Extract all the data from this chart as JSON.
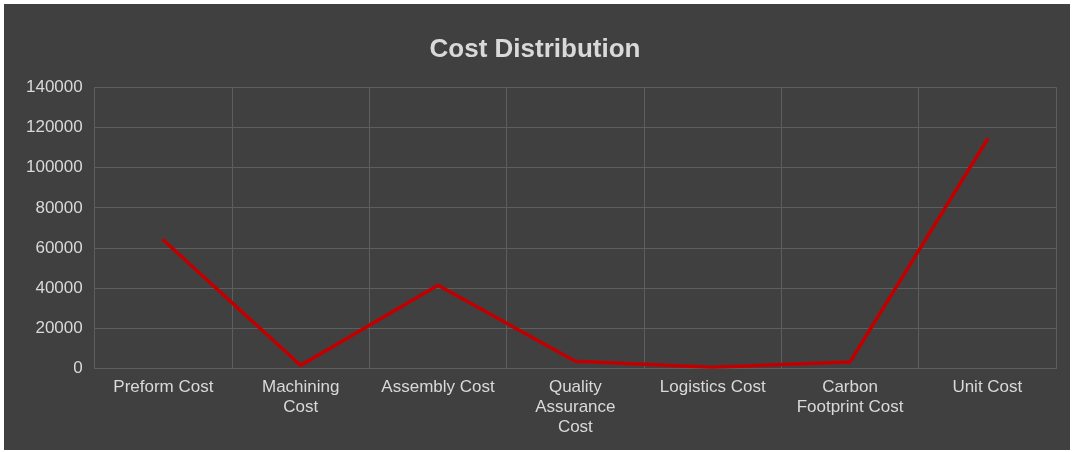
{
  "chart_data": {
    "type": "line",
    "title": "Cost Distribution",
    "categories": [
      "Preform Cost",
      "Machining Cost",
      "Assembly Cost",
      "Quality Assurance Cost",
      "Logistics Cost",
      "Carbon Footprint Cost",
      "Unit Cost"
    ],
    "series": [
      {
        "color": "#c00000",
        "values": [
          64000,
          1700,
          41500,
          3800,
          800,
          3400,
          114000
        ]
      }
    ],
    "ylim": [
      0,
      140000
    ],
    "yticks": [
      0,
      20000,
      40000,
      60000,
      80000,
      100000,
      120000,
      140000
    ],
    "grid": true,
    "legend": false,
    "marker": "none",
    "line_style": "solid"
  }
}
